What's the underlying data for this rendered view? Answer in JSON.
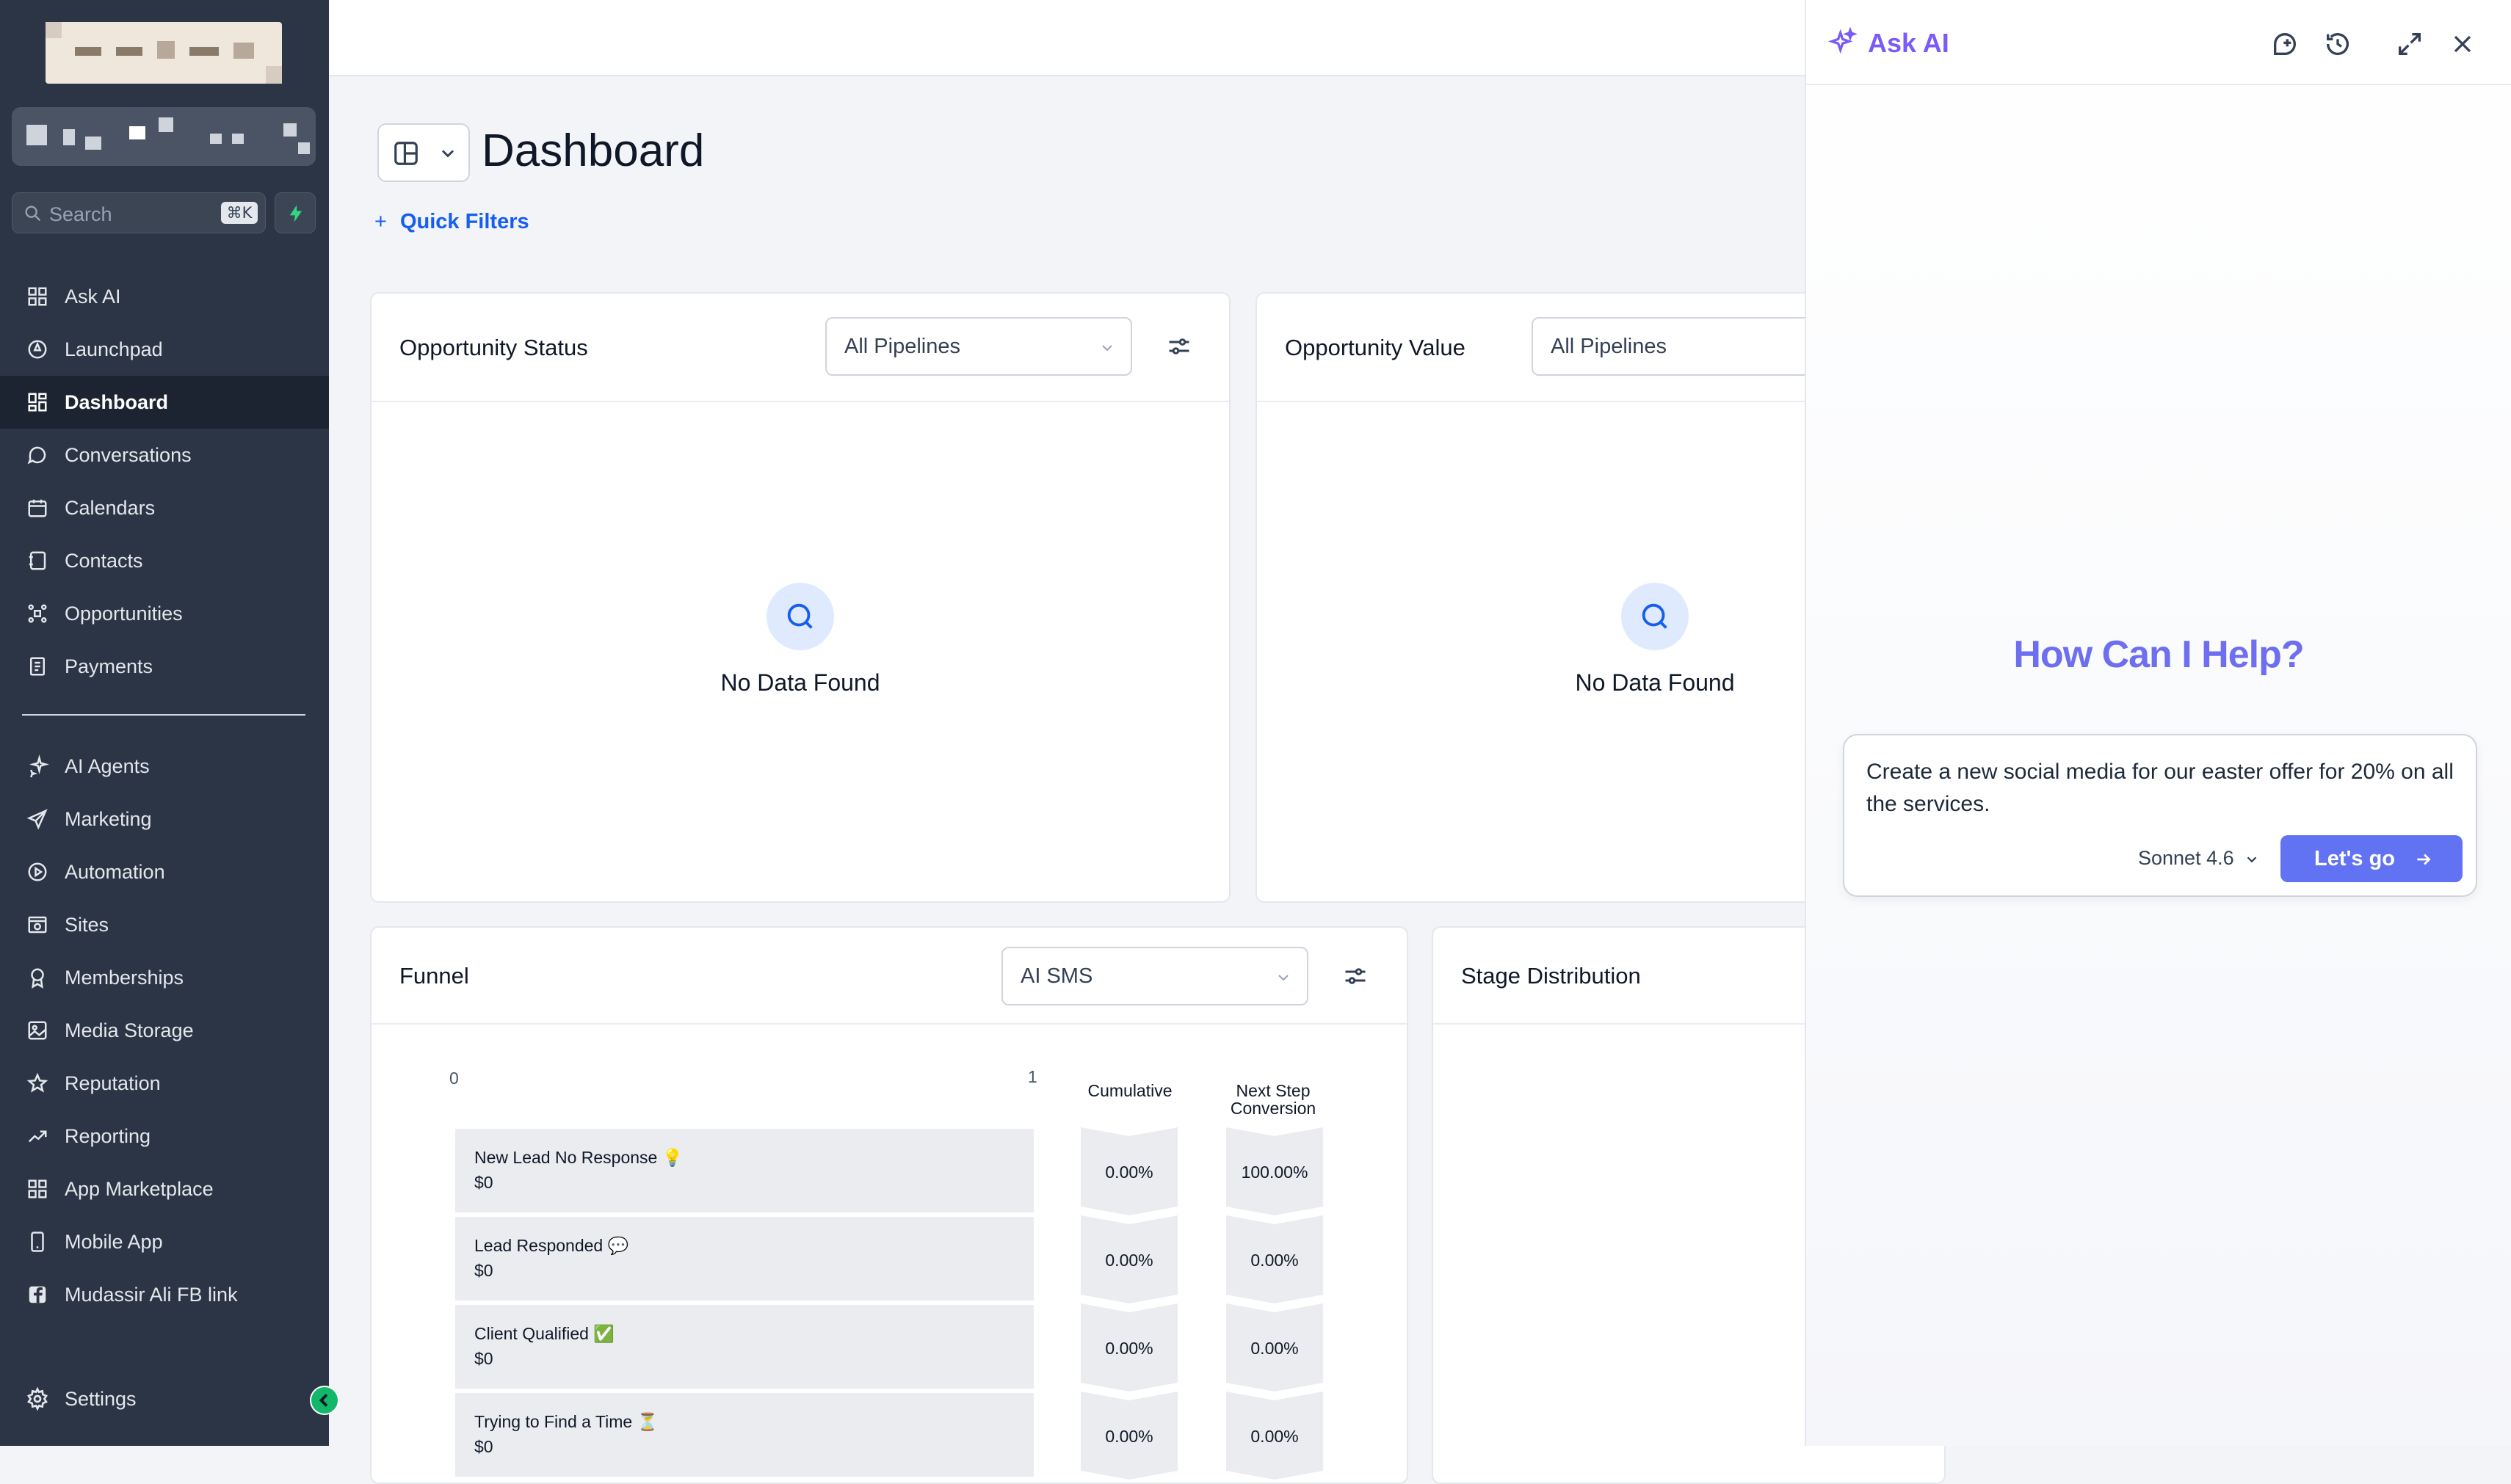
{
  "sidebar": {
    "search": {
      "placeholder": "Search",
      "shortcut": "⌘K"
    },
    "items": [
      {
        "label": "Ask AI",
        "icon": "grid-icon"
      },
      {
        "label": "Launchpad",
        "icon": "rocket-icon"
      },
      {
        "label": "Dashboard",
        "icon": "dashboard-icon",
        "active": true
      },
      {
        "label": "Conversations",
        "icon": "chat-bubble-icon"
      },
      {
        "label": "Calendars",
        "icon": "calendar-icon"
      },
      {
        "label": "Contacts",
        "icon": "contacts-icon"
      },
      {
        "label": "Opportunities",
        "icon": "opportunities-icon"
      },
      {
        "label": "Payments",
        "icon": "payments-icon"
      }
    ],
    "items2": [
      {
        "label": "AI Agents",
        "icon": "sparkle-icon"
      },
      {
        "label": "Marketing",
        "icon": "send-icon"
      },
      {
        "label": "Automation",
        "icon": "automation-icon"
      },
      {
        "label": "Sites",
        "icon": "sites-icon"
      },
      {
        "label": "Memberships",
        "icon": "badge-icon"
      },
      {
        "label": "Media Storage",
        "icon": "image-icon"
      },
      {
        "label": "Reputation",
        "icon": "star-icon"
      },
      {
        "label": "Reporting",
        "icon": "trend-icon"
      },
      {
        "label": "App Marketplace",
        "icon": "grid-icon"
      },
      {
        "label": "Mobile App",
        "icon": "phone-icon"
      },
      {
        "label": "Mudassir Ali FB link",
        "icon": "facebook-icon"
      }
    ],
    "settings_label": "Settings"
  },
  "main": {
    "title": "Dashboard",
    "quick_filters": "Quick Filters",
    "opportunity_status": {
      "title": "Opportunity Status",
      "pipeline": "All Pipelines",
      "empty": "No Data Found"
    },
    "opportunity_value": {
      "title": "Opportunity Value",
      "pipeline": "All Pipelines",
      "empty": "No Data Found"
    },
    "funnel": {
      "title": "Funnel",
      "selected": "AI SMS",
      "axis_min": "0",
      "axis_max": "1",
      "cumulative_header": "Cumulative",
      "next_step_header": "Next Step Conversion",
      "rows": [
        {
          "name": "New Lead No Response 💡",
          "value": "$0",
          "cumulative": "0.00%",
          "next": "100.00%"
        },
        {
          "name": "Lead Responded 💬",
          "value": "$0",
          "cumulative": "0.00%",
          "next": "0.00%"
        },
        {
          "name": "Client Qualified ✅",
          "value": "$0",
          "cumulative": "0.00%",
          "next": "0.00%"
        },
        {
          "name": "Trying to Find a Time ⏳",
          "value": "$0",
          "cumulative": "0.00%",
          "next": "0.00%"
        }
      ]
    },
    "stage_distribution": {
      "title": "Stage Distribution"
    }
  },
  "ask_ai": {
    "title": "Ask AI",
    "heading": "How Can I Help?",
    "prompt": "Create a new social media for our easter offer for 20% on all the services.",
    "model": "Sonnet 4.6",
    "go_label": "Let's go"
  },
  "colors": {
    "sidebar_bg": "#2b3545",
    "accent": "#155eef",
    "ai_purple": "#7a5af8",
    "go_button": "#6172f3"
  }
}
